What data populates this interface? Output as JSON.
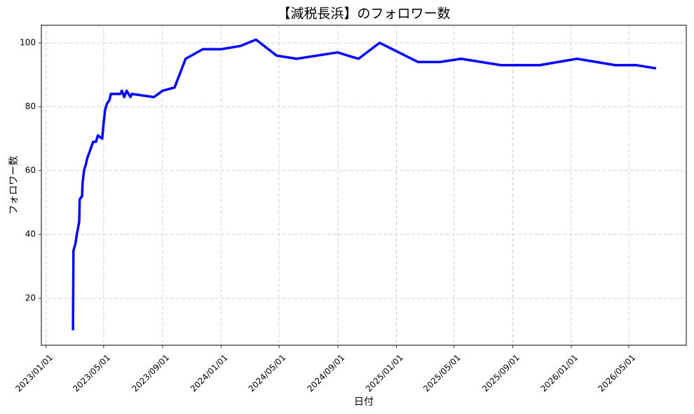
{
  "chart_data": {
    "type": "line",
    "title": "【減税長浜】のフォロワー数",
    "x_label": "日付",
    "y_label": "フォロワー数",
    "color": "#0000ff",
    "grid": true,
    "x": [
      "2023/02/26",
      "2023/02/27",
      "2023/03/03",
      "2023/03/06",
      "2023/03/11",
      "2023/03/12",
      "2023/03/17",
      "2023/03/18",
      "2023/03/21",
      "2023/03/25",
      "2023/03/28",
      "2023/04/02",
      "2023/04/09",
      "2023/04/15",
      "2023/04/19",
      "2023/04/28",
      "2023/05/01",
      "2023/05/04",
      "2023/05/08",
      "2023/05/13",
      "2023/05/16",
      "2023/06/05",
      "2023/06/08",
      "2023/06/13",
      "2023/06/18",
      "2023/06/26",
      "2023/06/29",
      "2023/08/14",
      "2023/09/01",
      "2023/09/26",
      "2023/10/19",
      "2023/11/24",
      "2024/01/01",
      "2024/02/10",
      "2024/03/14",
      "2024/04/26",
      "2024/06/07",
      "2024/08/31",
      "2024/10/14",
      "2024/11/27",
      "2025/02/15",
      "2025/04/02",
      "2025/05/16",
      "2025/08/07",
      "2025/10/27",
      "2026/01/13",
      "2026/04/03",
      "2026/05/17",
      "2026/06/27"
    ],
    "values": [
      10,
      35,
      37,
      40,
      44,
      51,
      52,
      56,
      60,
      62,
      64,
      66,
      69,
      69,
      71,
      70,
      75,
      79,
      81,
      82,
      84,
      84,
      85,
      83,
      85,
      83,
      84,
      83,
      85,
      86,
      95,
      98,
      98,
      99,
      101,
      96,
      95,
      97,
      95,
      100,
      94,
      94,
      95,
      93,
      93,
      95,
      93,
      93,
      92
    ],
    "xlim": [
      "2022/12/22",
      "2026/08/29"
    ],
    "xticks": [
      "2023/01/01",
      "2023/05/01",
      "2023/09/01",
      "2024/01/01",
      "2024/05/01",
      "2024/09/01",
      "2025/01/01",
      "2025/05/01",
      "2025/09/01",
      "2026/01/01",
      "2026/05/01"
    ],
    "ylim": [
      5.3,
      105.5
    ],
    "yticks": [
      20,
      40,
      60,
      80,
      100
    ]
  }
}
